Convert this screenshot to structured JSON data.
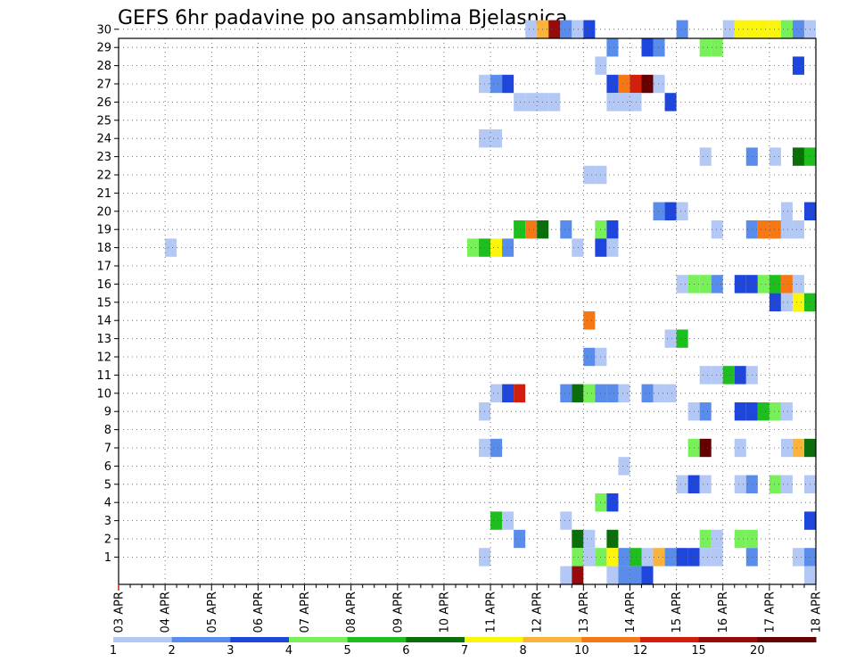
{
  "chart_data": {
    "type": "heatmap",
    "title": "GEFS 6hr padavine po ansamblima Bjelasnica",
    "xlabel": "",
    "ylabel": "",
    "x_tick_labels": [
      "03 APR",
      "04 APR",
      "05 APR",
      "06 APR",
      "07 APR",
      "08 APR",
      "09 APR",
      "10 APR",
      "11 APR",
      "12 APR",
      "13 APR",
      "14 APR",
      "15 APR",
      "16 APR",
      "17 APR",
      "18 APR"
    ],
    "y_tick_labels": [
      "1",
      "2",
      "3",
      "4",
      "5",
      "6",
      "7",
      "8",
      "9",
      "10",
      "11",
      "12",
      "13",
      "14",
      "15",
      "16",
      "17",
      "18",
      "19",
      "20",
      "21",
      "22",
      "23",
      "24",
      "25",
      "26",
      "27",
      "28",
      "29",
      "30"
    ],
    "x_range": [
      "03 APR 00Z",
      "18 APR 00Z"
    ],
    "y_range": [
      0,
      30
    ],
    "grid": true,
    "colorbar": {
      "labels": [
        "1",
        "2",
        "3",
        "4",
        "5",
        "6",
        "7",
        "8",
        "10",
        "12",
        "15",
        "20"
      ],
      "colors": [
        "#b4c8f5",
        "#5a8ceb",
        "#1e46dc",
        "#78f05a",
        "#1ebe1e",
        "#0a6e0a",
        "#faf50a",
        "#fab43c",
        "#f57814",
        "#d21e0a",
        "#960a0a",
        "#640000"
      ]
    },
    "cells": [
      {
        "member": 30,
        "x": "11 APR 18Z",
        "c": 1
      },
      {
        "member": 30,
        "x": "12 APR 00Z",
        "c": 8
      },
      {
        "member": 30,
        "x": "12 APR 06Z",
        "c": 11
      },
      {
        "member": 30,
        "x": "12 APR 12Z",
        "c": 2
      },
      {
        "member": 30,
        "x": "12 APR 18Z",
        "c": 1
      },
      {
        "member": 30,
        "x": "13 APR 00Z",
        "c": 3
      },
      {
        "member": 30,
        "x": "15 APR 00Z",
        "c": 2
      },
      {
        "member": 30,
        "x": "16 APR 00Z",
        "c": 1
      },
      {
        "member": 30,
        "x": "16 APR 06Z",
        "c": 7
      },
      {
        "member": 30,
        "x": "16 APR 12Z",
        "c": 7
      },
      {
        "member": 30,
        "x": "16 APR 18Z",
        "c": 7
      },
      {
        "member": 30,
        "x": "17 APR 00Z",
        "c": 7
      },
      {
        "member": 30,
        "x": "17 APR 06Z",
        "c": 4
      },
      {
        "member": 30,
        "x": "17 APR 12Z",
        "c": 2
      },
      {
        "member": 30,
        "x": "17 APR 18Z",
        "c": 1
      },
      {
        "member": 29,
        "x": "13 APR 12Z",
        "c": 2
      },
      {
        "member": 29,
        "x": "14 APR 06Z",
        "c": 3
      },
      {
        "member": 29,
        "x": "14 APR 12Z",
        "c": 2
      },
      {
        "member": 29,
        "x": "15 APR 12Z",
        "c": 4
      },
      {
        "member": 29,
        "x": "15 APR 18Z",
        "c": 4
      },
      {
        "member": 28,
        "x": "13 APR 06Z",
        "c": 1
      },
      {
        "member": 28,
        "x": "17 APR 12Z",
        "c": 3
      },
      {
        "member": 27,
        "x": "10 APR 18Z",
        "c": 1
      },
      {
        "member": 27,
        "x": "11 APR 00Z",
        "c": 2
      },
      {
        "member": 27,
        "x": "11 APR 06Z",
        "c": 3
      },
      {
        "member": 27,
        "x": "13 APR 12Z",
        "c": 3
      },
      {
        "member": 27,
        "x": "13 APR 18Z",
        "c": 9
      },
      {
        "member": 27,
        "x": "14 APR 00Z",
        "c": 10
      },
      {
        "member": 27,
        "x": "14 APR 06Z",
        "c": 12
      },
      {
        "member": 27,
        "x": "14 APR 12Z",
        "c": 1
      },
      {
        "member": 26,
        "x": "11 APR 12Z",
        "c": 1
      },
      {
        "member": 26,
        "x": "11 APR 18Z",
        "c": 1
      },
      {
        "member": 26,
        "x": "12 APR 00Z",
        "c": 1
      },
      {
        "member": 26,
        "x": "12 APR 06Z",
        "c": 1
      },
      {
        "member": 26,
        "x": "13 APR 12Z",
        "c": 1
      },
      {
        "member": 26,
        "x": "13 APR 18Z",
        "c": 1
      },
      {
        "member": 26,
        "x": "14 APR 00Z",
        "c": 1
      },
      {
        "member": 26,
        "x": "14 APR 18Z",
        "c": 3
      },
      {
        "member": 24,
        "x": "10 APR 18Z",
        "c": 1
      },
      {
        "member": 24,
        "x": "11 APR 00Z",
        "c": 1
      },
      {
        "member": 23,
        "x": "15 APR 12Z",
        "c": 1
      },
      {
        "member": 23,
        "x": "16 APR 12Z",
        "c": 2
      },
      {
        "member": 23,
        "x": "17 APR 00Z",
        "c": 1
      },
      {
        "member": 23,
        "x": "17 APR 12Z",
        "c": 6
      },
      {
        "member": 23,
        "x": "17 APR 18Z",
        "c": 5
      },
      {
        "member": 22,
        "x": "13 APR 00Z",
        "c": 1
      },
      {
        "member": 22,
        "x": "13 APR 06Z",
        "c": 1
      },
      {
        "member": 20,
        "x": "14 APR 12Z",
        "c": 2
      },
      {
        "member": 20,
        "x": "14 APR 18Z",
        "c": 3
      },
      {
        "member": 20,
        "x": "15 APR 00Z",
        "c": 1
      },
      {
        "member": 20,
        "x": "17 APR 06Z",
        "c": 1
      },
      {
        "member": 20,
        "x": "17 APR 18Z",
        "c": 3
      },
      {
        "member": 19,
        "x": "11 APR 12Z",
        "c": 5
      },
      {
        "member": 19,
        "x": "11 APR 18Z",
        "c": 9
      },
      {
        "member": 19,
        "x": "12 APR 00Z",
        "c": 6
      },
      {
        "member": 19,
        "x": "12 APR 12Z",
        "c": 2
      },
      {
        "member": 19,
        "x": "13 APR 06Z",
        "c": 4
      },
      {
        "member": 19,
        "x": "13 APR 12Z",
        "c": 3
      },
      {
        "member": 19,
        "x": "15 APR 18Z",
        "c": 1
      },
      {
        "member": 19,
        "x": "16 APR 12Z",
        "c": 2
      },
      {
        "member": 19,
        "x": "16 APR 18Z",
        "c": 9
      },
      {
        "member": 19,
        "x": "17 APR 00Z",
        "c": 9
      },
      {
        "member": 19,
        "x": "17 APR 06Z",
        "c": 1
      },
      {
        "member": 19,
        "x": "17 APR 12Z",
        "c": 1
      },
      {
        "member": 18,
        "x": "04 APR 00Z",
        "c": 1
      },
      {
        "member": 18,
        "x": "10 APR 12Z",
        "c": 4
      },
      {
        "member": 18,
        "x": "10 APR 18Z",
        "c": 5
      },
      {
        "member": 18,
        "x": "11 APR 00Z",
        "c": 7
      },
      {
        "member": 18,
        "x": "11 APR 06Z",
        "c": 2
      },
      {
        "member": 18,
        "x": "12 APR 18Z",
        "c": 1
      },
      {
        "member": 18,
        "x": "13 APR 06Z",
        "c": 3
      },
      {
        "member": 18,
        "x": "13 APR 12Z",
        "c": 1
      },
      {
        "member": 16,
        "x": "15 APR 00Z",
        "c": 1
      },
      {
        "member": 16,
        "x": "15 APR 06Z",
        "c": 4
      },
      {
        "member": 16,
        "x": "15 APR 12Z",
        "c": 4
      },
      {
        "member": 16,
        "x": "15 APR 18Z",
        "c": 2
      },
      {
        "member": 16,
        "x": "16 APR 06Z",
        "c": 3
      },
      {
        "member": 16,
        "x": "16 APR 12Z",
        "c": 3
      },
      {
        "member": 16,
        "x": "16 APR 18Z",
        "c": 4
      },
      {
        "member": 16,
        "x": "17 APR 00Z",
        "c": 5
      },
      {
        "member": 16,
        "x": "17 APR 06Z",
        "c": 9
      },
      {
        "member": 16,
        "x": "17 APR 12Z",
        "c": 1
      },
      {
        "member": 15,
        "x": "17 APR 00Z",
        "c": 3
      },
      {
        "member": 15,
        "x": "17 APR 06Z",
        "c": 1
      },
      {
        "member": 15,
        "x": "17 APR 12Z",
        "c": 7
      },
      {
        "member": 15,
        "x": "17 APR 18Z",
        "c": 5
      },
      {
        "member": 14,
        "x": "13 APR 00Z",
        "c": 9
      },
      {
        "member": 13,
        "x": "14 APR 18Z",
        "c": 1
      },
      {
        "member": 13,
        "x": "15 APR 00Z",
        "c": 5
      },
      {
        "member": 12,
        "x": "13 APR 00Z",
        "c": 2
      },
      {
        "member": 12,
        "x": "13 APR 06Z",
        "c": 1
      },
      {
        "member": 11,
        "x": "15 APR 12Z",
        "c": 1
      },
      {
        "member": 11,
        "x": "15 APR 18Z",
        "c": 1
      },
      {
        "member": 11,
        "x": "16 APR 00Z",
        "c": 5
      },
      {
        "member": 11,
        "x": "16 APR 06Z",
        "c": 3
      },
      {
        "member": 11,
        "x": "16 APR 12Z",
        "c": 1
      },
      {
        "member": 10,
        "x": "11 APR 00Z",
        "c": 1
      },
      {
        "member": 10,
        "x": "11 APR 06Z",
        "c": 3
      },
      {
        "member": 10,
        "x": "11 APR 12Z",
        "c": 10
      },
      {
        "member": 10,
        "x": "12 APR 12Z",
        "c": 2
      },
      {
        "member": 10,
        "x": "12 APR 18Z",
        "c": 6
      },
      {
        "member": 10,
        "x": "13 APR 00Z",
        "c": 4
      },
      {
        "member": 10,
        "x": "13 APR 06Z",
        "c": 2
      },
      {
        "member": 10,
        "x": "13 APR 12Z",
        "c": 2
      },
      {
        "member": 10,
        "x": "13 APR 18Z",
        "c": 1
      },
      {
        "member": 10,
        "x": "14 APR 06Z",
        "c": 2
      },
      {
        "member": 10,
        "x": "14 APR 12Z",
        "c": 1
      },
      {
        "member": 10,
        "x": "14 APR 18Z",
        "c": 1
      },
      {
        "member": 9,
        "x": "10 APR 18Z",
        "c": 1
      },
      {
        "member": 9,
        "x": "15 APR 06Z",
        "c": 1
      },
      {
        "member": 9,
        "x": "15 APR 12Z",
        "c": 2
      },
      {
        "member": 9,
        "x": "16 APR 06Z",
        "c": 3
      },
      {
        "member": 9,
        "x": "16 APR 12Z",
        "c": 3
      },
      {
        "member": 9,
        "x": "16 APR 18Z",
        "c": 5
      },
      {
        "member": 9,
        "x": "17 APR 00Z",
        "c": 4
      },
      {
        "member": 9,
        "x": "17 APR 06Z",
        "c": 1
      },
      {
        "member": 7,
        "x": "10 APR 18Z",
        "c": 1
      },
      {
        "member": 7,
        "x": "11 APR 00Z",
        "c": 2
      },
      {
        "member": 7,
        "x": "15 APR 06Z",
        "c": 4
      },
      {
        "member": 7,
        "x": "15 APR 12Z",
        "c": 12
      },
      {
        "member": 7,
        "x": "16 APR 06Z",
        "c": 1
      },
      {
        "member": 7,
        "x": "17 APR 06Z",
        "c": 1
      },
      {
        "member": 7,
        "x": "17 APR 12Z",
        "c": 8
      },
      {
        "member": 7,
        "x": "17 APR 18Z",
        "c": 6
      },
      {
        "member": 6,
        "x": "13 APR 18Z",
        "c": 1
      },
      {
        "member": 5,
        "x": "15 APR 00Z",
        "c": 1
      },
      {
        "member": 5,
        "x": "15 APR 06Z",
        "c": 3
      },
      {
        "member": 5,
        "x": "15 APR 12Z",
        "c": 1
      },
      {
        "member": 5,
        "x": "16 APR 06Z",
        "c": 1
      },
      {
        "member": 5,
        "x": "16 APR 12Z",
        "c": 2
      },
      {
        "member": 5,
        "x": "17 APR 00Z",
        "c": 4
      },
      {
        "member": 5,
        "x": "17 APR 06Z",
        "c": 1
      },
      {
        "member": 5,
        "x": "17 APR 18Z",
        "c": 1
      },
      {
        "member": 4,
        "x": "13 APR 06Z",
        "c": 4
      },
      {
        "member": 4,
        "x": "13 APR 12Z",
        "c": 3
      },
      {
        "member": 3,
        "x": "11 APR 00Z",
        "c": 5
      },
      {
        "member": 3,
        "x": "11 APR 06Z",
        "c": 1
      },
      {
        "member": 3,
        "x": "12 APR 12Z",
        "c": 1
      },
      {
        "member": 3,
        "x": "17 APR 18Z",
        "c": 3
      },
      {
        "member": 2,
        "x": "11 APR 12Z",
        "c": 2
      },
      {
        "member": 2,
        "x": "12 APR 18Z",
        "c": 6
      },
      {
        "member": 2,
        "x": "13 APR 00Z",
        "c": 1
      },
      {
        "member": 2,
        "x": "13 APR 12Z",
        "c": 6
      },
      {
        "member": 2,
        "x": "15 APR 12Z",
        "c": 4
      },
      {
        "member": 2,
        "x": "15 APR 18Z",
        "c": 1
      },
      {
        "member": 2,
        "x": "16 APR 06Z",
        "c": 4
      },
      {
        "member": 2,
        "x": "16 APR 12Z",
        "c": 4
      },
      {
        "member": 1,
        "x": "10 APR 18Z",
        "c": 1
      },
      {
        "member": 1,
        "x": "12 APR 18Z",
        "c": 4
      },
      {
        "member": 1,
        "x": "13 APR 00Z",
        "c": 1
      },
      {
        "member": 1,
        "x": "13 APR 06Z",
        "c": 4
      },
      {
        "member": 1,
        "x": "13 APR 12Z",
        "c": 7
      },
      {
        "member": 1,
        "x": "13 APR 18Z",
        "c": 2
      },
      {
        "member": 1,
        "x": "14 APR 00Z",
        "c": 5
      },
      {
        "member": 1,
        "x": "14 APR 06Z",
        "c": 1
      },
      {
        "member": 1,
        "x": "14 APR 12Z",
        "c": 8
      },
      {
        "member": 1,
        "x": "14 APR 18Z",
        "c": 2
      },
      {
        "member": 1,
        "x": "15 APR 00Z",
        "c": 3
      },
      {
        "member": 1,
        "x": "15 APR 06Z",
        "c": 3
      },
      {
        "member": 1,
        "x": "15 APR 12Z",
        "c": 1
      },
      {
        "member": 1,
        "x": "15 APR 18Z",
        "c": 1
      },
      {
        "member": 1,
        "x": "16 APR 12Z",
        "c": 2
      },
      {
        "member": 1,
        "x": "17 APR 12Z",
        "c": 1
      },
      {
        "member": 1,
        "x": "17 APR 18Z",
        "c": 2
      },
      {
        "member": 0,
        "x": "12 APR 12Z",
        "c": 1
      },
      {
        "member": 0,
        "x": "12 APR 18Z",
        "c": 11
      },
      {
        "member": 0,
        "x": "13 APR 12Z",
        "c": 1
      },
      {
        "member": 0,
        "x": "13 APR 18Z",
        "c": 2
      },
      {
        "member": 0,
        "x": "14 APR 00Z",
        "c": 2
      },
      {
        "member": 0,
        "x": "14 APR 06Z",
        "c": 3
      },
      {
        "member": 0,
        "x": "17 APR 18Z",
        "c": 1
      }
    ]
  }
}
